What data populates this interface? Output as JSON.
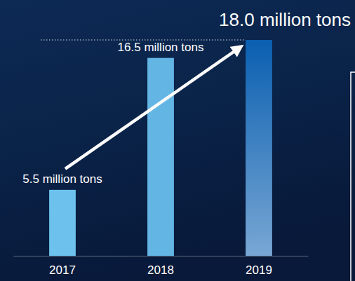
{
  "chart_data": {
    "type": "bar",
    "categories": [
      "2017",
      "2018",
      "2019"
    ],
    "values": [
      5.5,
      16.5,
      18.0
    ],
    "value_labels": [
      "5.5 million tons",
      "16.5 million tons",
      "18.0 million tons"
    ],
    "colors": [
      "#6cc2ec",
      "#63b5e4",
      "#0a5fb0"
    ],
    "ylim": [
      0,
      18
    ],
    "data_labels": true,
    "tick_labels": "x"
  }
}
